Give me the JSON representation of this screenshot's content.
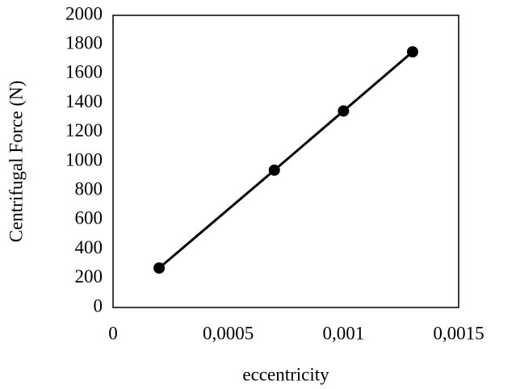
{
  "chart_data": {
    "type": "line",
    "x_label": "eccentricity",
    "y_label": "Centrifugal Force (N)",
    "x": [
      0.0002,
      0.0007,
      0.001,
      0.0013
    ],
    "series": [
      {
        "color": "#000000",
        "values": [
          270,
          940,
          1345,
          1750
        ]
      }
    ],
    "xlim": [
      0,
      0.0015
    ],
    "xticks": [
      0,
      {
        "value": 0.0005,
        "label": "0,0005"
      },
      {
        "value": 0.001,
        "label": "0,001"
      },
      {
        "value": 0.0015,
        "label": "0,0015"
      }
    ],
    "ylim": [
      0,
      2000
    ],
    "yticks": [
      0,
      200,
      400,
      600,
      800,
      1000,
      1200,
      1400,
      1600,
      1800,
      2000
    ],
    "grid": false,
    "markers": true
  }
}
